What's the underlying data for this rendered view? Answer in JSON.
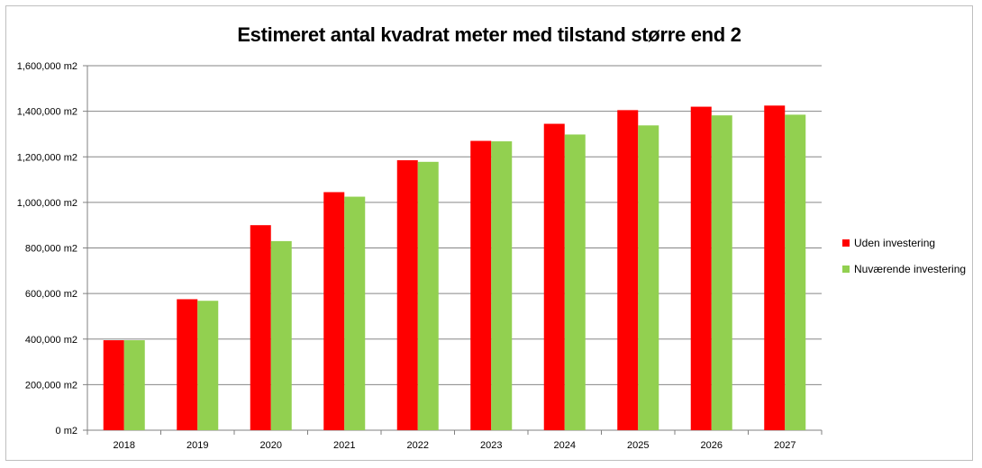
{
  "chart_data": {
    "type": "bar",
    "title": "Estimeret antal kvadrat meter med tilstand større end 2",
    "categories": [
      "2018",
      "2019",
      "2020",
      "2021",
      "2022",
      "2023",
      "2024",
      "2025",
      "2026",
      "2027"
    ],
    "series": [
      {
        "name": "Uden investering",
        "color": "#ff0000",
        "values": [
          395000,
          575000,
          900000,
          1045000,
          1185000,
          1270000,
          1345000,
          1405000,
          1420000,
          1425000
        ]
      },
      {
        "name": "Nuværende investering",
        "color": "#92d050",
        "values": [
          395000,
          568000,
          830000,
          1025000,
          1178000,
          1268000,
          1298000,
          1338000,
          1382000,
          1385000
        ]
      }
    ],
    "ylim": [
      0,
      1600000
    ],
    "yticks": [
      "0 m2",
      "200,000 m2",
      "400,000 m2",
      "600,000 m2",
      "800,000 m2",
      "1,000,000 m2",
      "1,200,000 m2",
      "1,400,000 m2",
      "1,600,000 m2"
    ],
    "xlabel": "",
    "ylabel": "",
    "grid": true,
    "legend_position": "right"
  }
}
